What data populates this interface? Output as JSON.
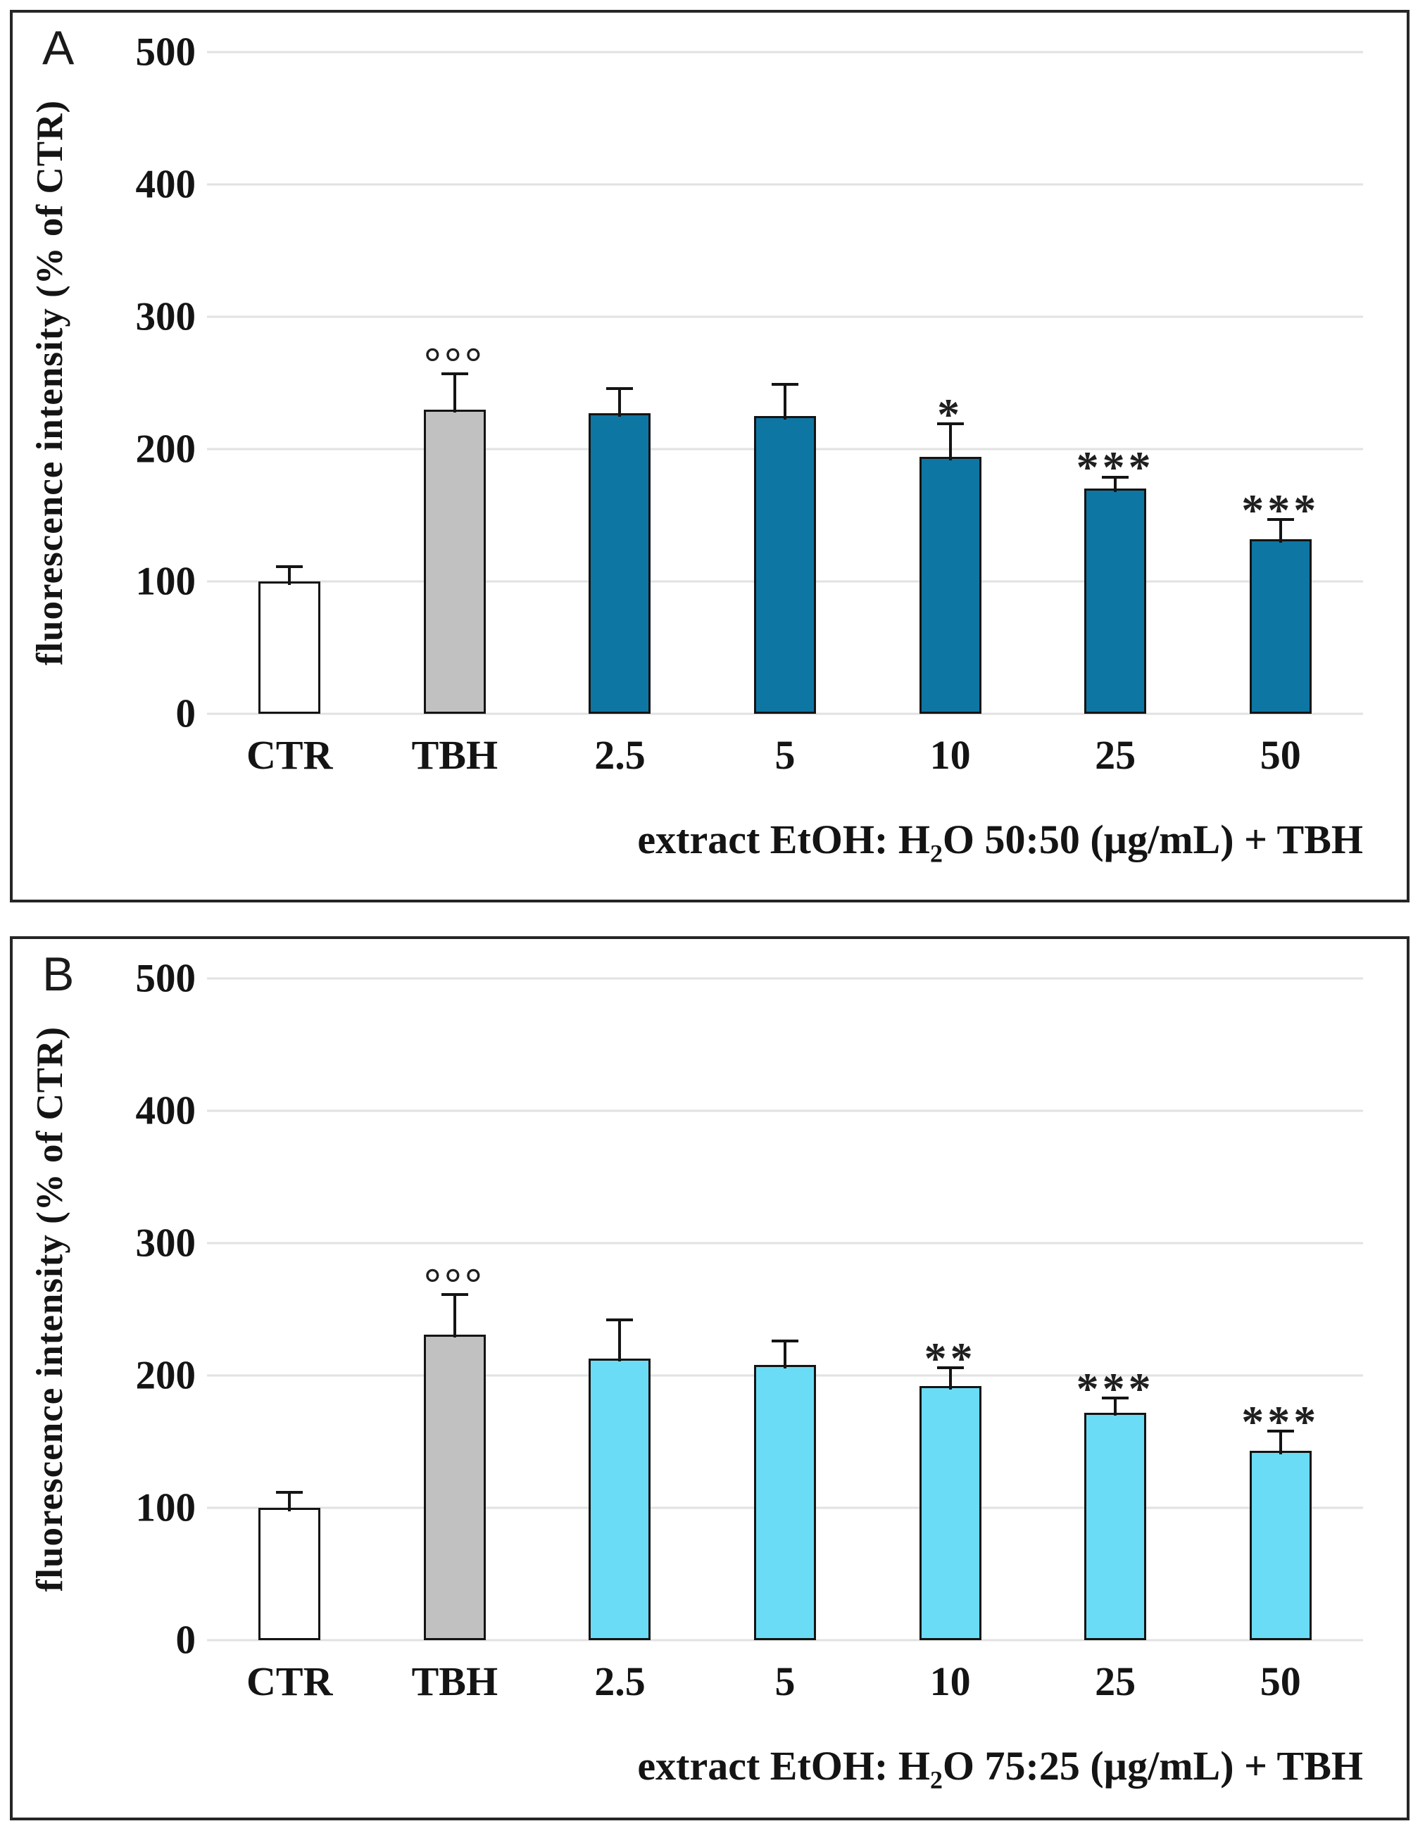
{
  "figure": {
    "background": "#ffffff",
    "frame_color": "#262626",
    "gridline_color": "#E2E2E2",
    "bar_border_color": "#141414",
    "palette": {
      "white": "#FFFFFF",
      "gray": "#C1C1C1",
      "blue_dark": "#0E76A3",
      "cyan_light": "#6BDCF5"
    }
  },
  "chart_data": [
    {
      "type": "bar",
      "panel_label": "A",
      "ylabel": "fluorescence intensity (% of CTR)",
      "ylim": [
        0,
        500
      ],
      "yticks": [
        "500",
        "400",
        "300",
        "200",
        "100",
        "0"
      ],
      "ytick_values": [
        500,
        400,
        300,
        200,
        100,
        0
      ],
      "grid": "horizontal",
      "legend": "none",
      "categories": [
        "CTR",
        "TBH",
        "2.5",
        "5",
        "10",
        "25",
        "50"
      ],
      "values": [
        100,
        230,
        227,
        225,
        194,
        170,
        132
      ],
      "errors_plus": [
        12,
        28,
        20,
        25,
        26,
        10,
        16
      ],
      "annotations": [
        "",
        "°°°",
        "",
        "",
        "*",
        "***",
        "***"
      ],
      "bar_fills": [
        "white",
        "gray",
        "blue_dark",
        "blue_dark",
        "blue_dark",
        "blue_dark",
        "blue_dark"
      ],
      "title_parts": {
        "pre": "extract EtOH: H",
        "sub": "2",
        "post": "O 50:50 (µg/mL) + TBH"
      }
    },
    {
      "type": "bar",
      "panel_label": "B",
      "ylabel": "fluorescence intensity (% of CTR)",
      "ylim": [
        0,
        500
      ],
      "yticks": [
        "500",
        "400",
        "300",
        "200",
        "100",
        "0"
      ],
      "ytick_values": [
        500,
        400,
        300,
        200,
        100,
        0
      ],
      "grid": "horizontal",
      "legend": "none",
      "categories": [
        "CTR",
        "TBH",
        "2.5",
        "5",
        "10",
        "25",
        "50"
      ],
      "values": [
        100,
        231,
        213,
        208,
        192,
        172,
        143
      ],
      "errors_plus": [
        13,
        31,
        30,
        19,
        15,
        12,
        16
      ],
      "annotations": [
        "",
        "°°°",
        "",
        "",
        "**",
        "***",
        "***"
      ],
      "bar_fills": [
        "white",
        "gray",
        "cyan_light",
        "cyan_light",
        "cyan_light",
        "cyan_light",
        "cyan_light"
      ],
      "title_parts": {
        "pre": "extract EtOH: H",
        "sub": "2",
        "post": "O 75:25 (µg/mL) + TBH"
      }
    }
  ]
}
